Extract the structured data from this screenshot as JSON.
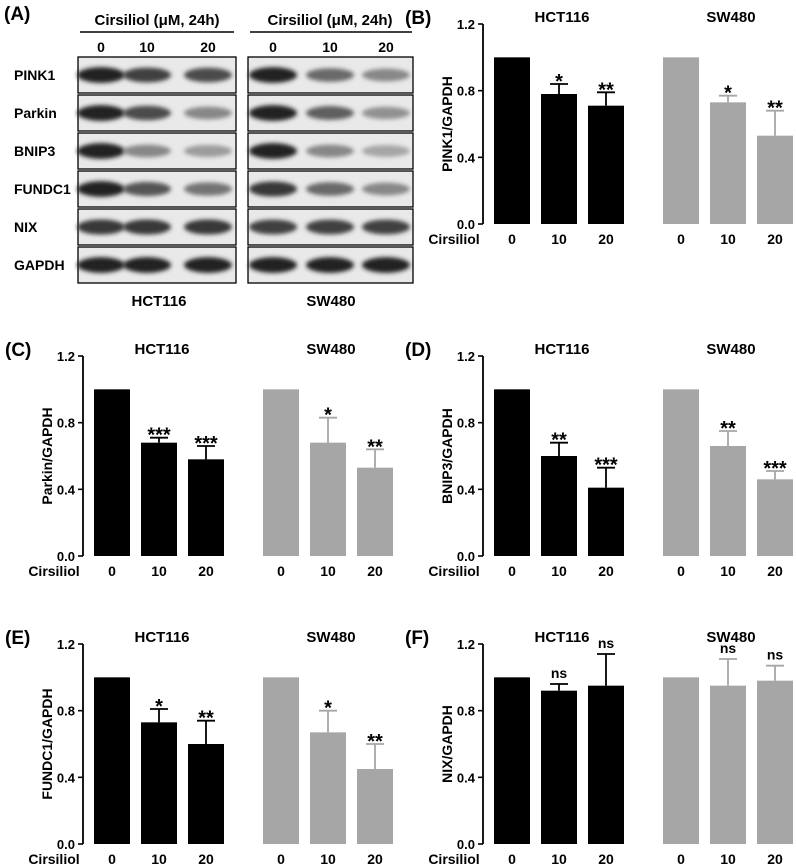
{
  "blot": {
    "panel_label": "(A)",
    "condition_label": "Cirsiliol (μM, 24h)",
    "lanes": [
      "0",
      "10",
      "20"
    ],
    "proteins": [
      "PINK1",
      "Parkin",
      "BNIP3",
      "FUNDC1",
      "NIX",
      "GAPDH"
    ],
    "cell_lines": [
      "HCT116",
      "SW480"
    ]
  },
  "x_row_label": "Cirsiliol",
  "chart_data": [
    {
      "type": "bar",
      "panel": "(B)",
      "ylabel": "PINK1/GAPDH",
      "ylim": [
        0,
        1.2
      ],
      "yticks": [
        "0.0",
        "0.4",
        "0.8",
        "1.2"
      ],
      "groups": [
        "HCT116",
        "SW480"
      ],
      "categories": [
        "0",
        "10",
        "20"
      ],
      "series": [
        {
          "values": [
            1.0,
            0.78,
            0.71
          ],
          "errors": [
            0,
            0.06,
            0.08
          ],
          "significance": [
            "",
            "*",
            "**"
          ],
          "color": "#000000"
        },
        {
          "values": [
            1.0,
            0.73,
            0.53
          ],
          "errors": [
            0,
            0.04,
            0.15
          ],
          "significance": [
            "",
            "*",
            "**"
          ],
          "color": "#a6a6a6"
        }
      ]
    },
    {
      "type": "bar",
      "panel": "(C)",
      "ylabel": "Parkin/GAPDH",
      "ylim": [
        0,
        1.2
      ],
      "yticks": [
        "0.0",
        "0.4",
        "0.8",
        "1.2"
      ],
      "groups": [
        "HCT116",
        "SW480"
      ],
      "categories": [
        "0",
        "10",
        "20"
      ],
      "series": [
        {
          "values": [
            1.0,
            0.68,
            0.58
          ],
          "errors": [
            0,
            0.03,
            0.08
          ],
          "significance": [
            "",
            "***",
            "***"
          ],
          "color": "#000000"
        },
        {
          "values": [
            1.0,
            0.68,
            0.53
          ],
          "errors": [
            0,
            0.15,
            0.11
          ],
          "significance": [
            "",
            "*",
            "**"
          ],
          "color": "#a6a6a6"
        }
      ]
    },
    {
      "type": "bar",
      "panel": "(D)",
      "ylabel": "BNIP3/GAPDH",
      "ylim": [
        0,
        1.2
      ],
      "yticks": [
        "0.0",
        "0.4",
        "0.8",
        "1.2"
      ],
      "groups": [
        "HCT116",
        "SW480"
      ],
      "categories": [
        "0",
        "10",
        "20"
      ],
      "series": [
        {
          "values": [
            1.0,
            0.6,
            0.41
          ],
          "errors": [
            0,
            0.08,
            0.12
          ],
          "significance": [
            "",
            "**",
            "***"
          ],
          "color": "#000000"
        },
        {
          "values": [
            1.0,
            0.66,
            0.46
          ],
          "errors": [
            0,
            0.09,
            0.05
          ],
          "significance": [
            "",
            "**",
            "***"
          ],
          "color": "#a6a6a6"
        }
      ]
    },
    {
      "type": "bar",
      "panel": "(E)",
      "ylabel": "FUNDC1/GAPDH",
      "ylim": [
        0,
        1.2
      ],
      "yticks": [
        "0.0",
        "0.4",
        "0.8",
        "1.2"
      ],
      "groups": [
        "HCT116",
        "SW480"
      ],
      "categories": [
        "0",
        "10",
        "20"
      ],
      "series": [
        {
          "values": [
            1.0,
            0.73,
            0.6
          ],
          "errors": [
            0,
            0.08,
            0.14
          ],
          "significance": [
            "",
            "*",
            "**"
          ],
          "color": "#000000"
        },
        {
          "values": [
            1.0,
            0.67,
            0.45
          ],
          "errors": [
            0,
            0.13,
            0.15
          ],
          "significance": [
            "",
            "*",
            "**"
          ],
          "color": "#a6a6a6"
        }
      ]
    },
    {
      "type": "bar",
      "panel": "(F)",
      "ylabel": "NIX/GAPDH",
      "ylim": [
        0,
        1.2
      ],
      "yticks": [
        "0.0",
        "0.4",
        "0.8",
        "1.2"
      ],
      "groups": [
        "HCT116",
        "SW480"
      ],
      "categories": [
        "0",
        "10",
        "20"
      ],
      "series": [
        {
          "values": [
            1.0,
            0.92,
            0.95
          ],
          "errors": [
            0,
            0.04,
            0.19
          ],
          "significance": [
            "",
            "ns",
            "ns"
          ],
          "color": "#000000"
        },
        {
          "values": [
            1.0,
            0.95,
            0.98
          ],
          "errors": [
            0,
            0.16,
            0.09
          ],
          "significance": [
            "",
            "ns",
            "ns"
          ],
          "color": "#a6a6a6"
        }
      ]
    }
  ]
}
